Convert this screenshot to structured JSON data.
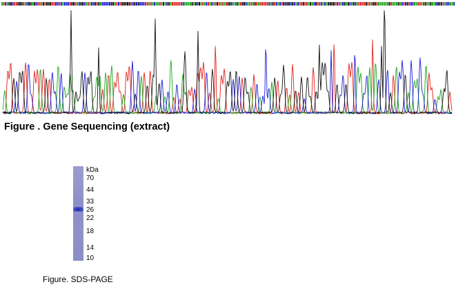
{
  "sequencing_figure": {
    "caption": "Figure . Gene Sequencing (extract)",
    "base_colors": {
      "A": "#1aa51a",
      "C": "#1a1ad8",
      "G": "#111111",
      "T": "#e0201a"
    }
  },
  "sds_page_figure": {
    "caption": "Figure. SDS-PAGE",
    "unit_label": "kDa",
    "markers": [
      "70",
      "44",
      "33",
      "26",
      "22",
      "18",
      "14",
      "10"
    ],
    "lane_color": "#8f92c8",
    "band_color": "#2030b8"
  }
}
